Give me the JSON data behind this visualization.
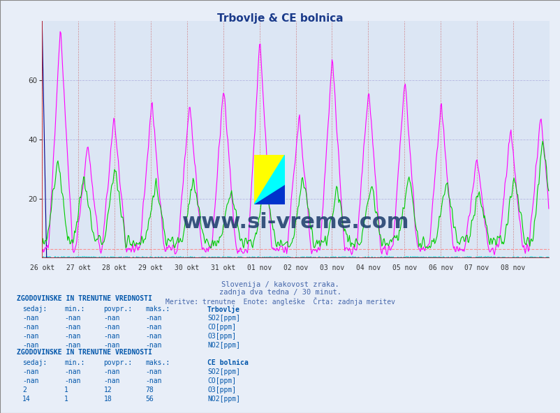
{
  "title": "Trbovlje & CE bolnica",
  "title_color": "#1a3a8a",
  "title_fontsize": 11,
  "bg_color": "#e8eef8",
  "plot_bg_color": "#dce6f4",
  "ylim": [
    0,
    80
  ],
  "yticks": [
    20,
    40,
    60
  ],
  "xlabel_dates": [
    "26 okt",
    "27 okt",
    "28 okt",
    "29 okt",
    "30 okt",
    "31 okt",
    "01 nov",
    "02 nov",
    "03 nov",
    "04 nov",
    "05 nov",
    "06 nov",
    "07 nov",
    "08 nov"
  ],
  "grid_color_h": "#aaaadd",
  "grid_color_v": "#cc6666",
  "line_colors": {
    "SO2": "#000088",
    "CO": "#00cccc",
    "O3": "#ff00ff",
    "NO2": "#00cc00"
  },
  "hline_color": "#ff8888",
  "hline_y": 3,
  "subtitle1": "Slovenija / kakovost zraka.",
  "subtitle2": "zadnja dva tedna / 30 minut.",
  "subtitle3": "Meritve: trenutne  Enote: angleške  Črta: zadnja meritev",
  "subtitle_color": "#4466aa",
  "table1_header": "ZGODOVINSKE IN TRENUTNE VREDNOSTI",
  "table1_station": "Trbovlje",
  "table2_station": "CE bolnica",
  "table_color": "#0055aa",
  "col_headers": [
    "sedaj:",
    "min.:",
    "povpr.:",
    "maks.:"
  ],
  "trbovlje_rows": [
    [
      "-nan",
      "-nan",
      "-nan",
      "-nan",
      "SO2[ppm]",
      "#000088"
    ],
    [
      "-nan",
      "-nan",
      "-nan",
      "-nan",
      "CO[ppm]",
      "#00aaaa"
    ],
    [
      "-nan",
      "-nan",
      "-nan",
      "-nan",
      "O3[ppm]",
      "#ff00ff"
    ],
    [
      "-nan",
      "-nan",
      "-nan",
      "-nan",
      "NO2[ppm]",
      "#00cc00"
    ]
  ],
  "cebolnica_rows": [
    [
      "-nan",
      "-nan",
      "-nan",
      "-nan",
      "SO2[ppm]",
      "#000088"
    ],
    [
      "-nan",
      "-nan",
      "-nan",
      "-nan",
      "CO[ppm]",
      "#00aaaa"
    ],
    [
      "2",
      "1",
      "12",
      "78",
      "O3[ppm]",
      "#ff00ff"
    ],
    [
      "14",
      "1",
      "18",
      "56",
      "NO2[ppm]",
      "#00cc00"
    ]
  ],
  "watermark_text": "www.si-vreme.com",
  "watermark_color": "#1a3a6a",
  "logo_yellow": "#ffff00",
  "logo_cyan": "#00ffff",
  "logo_blue": "#0033cc"
}
